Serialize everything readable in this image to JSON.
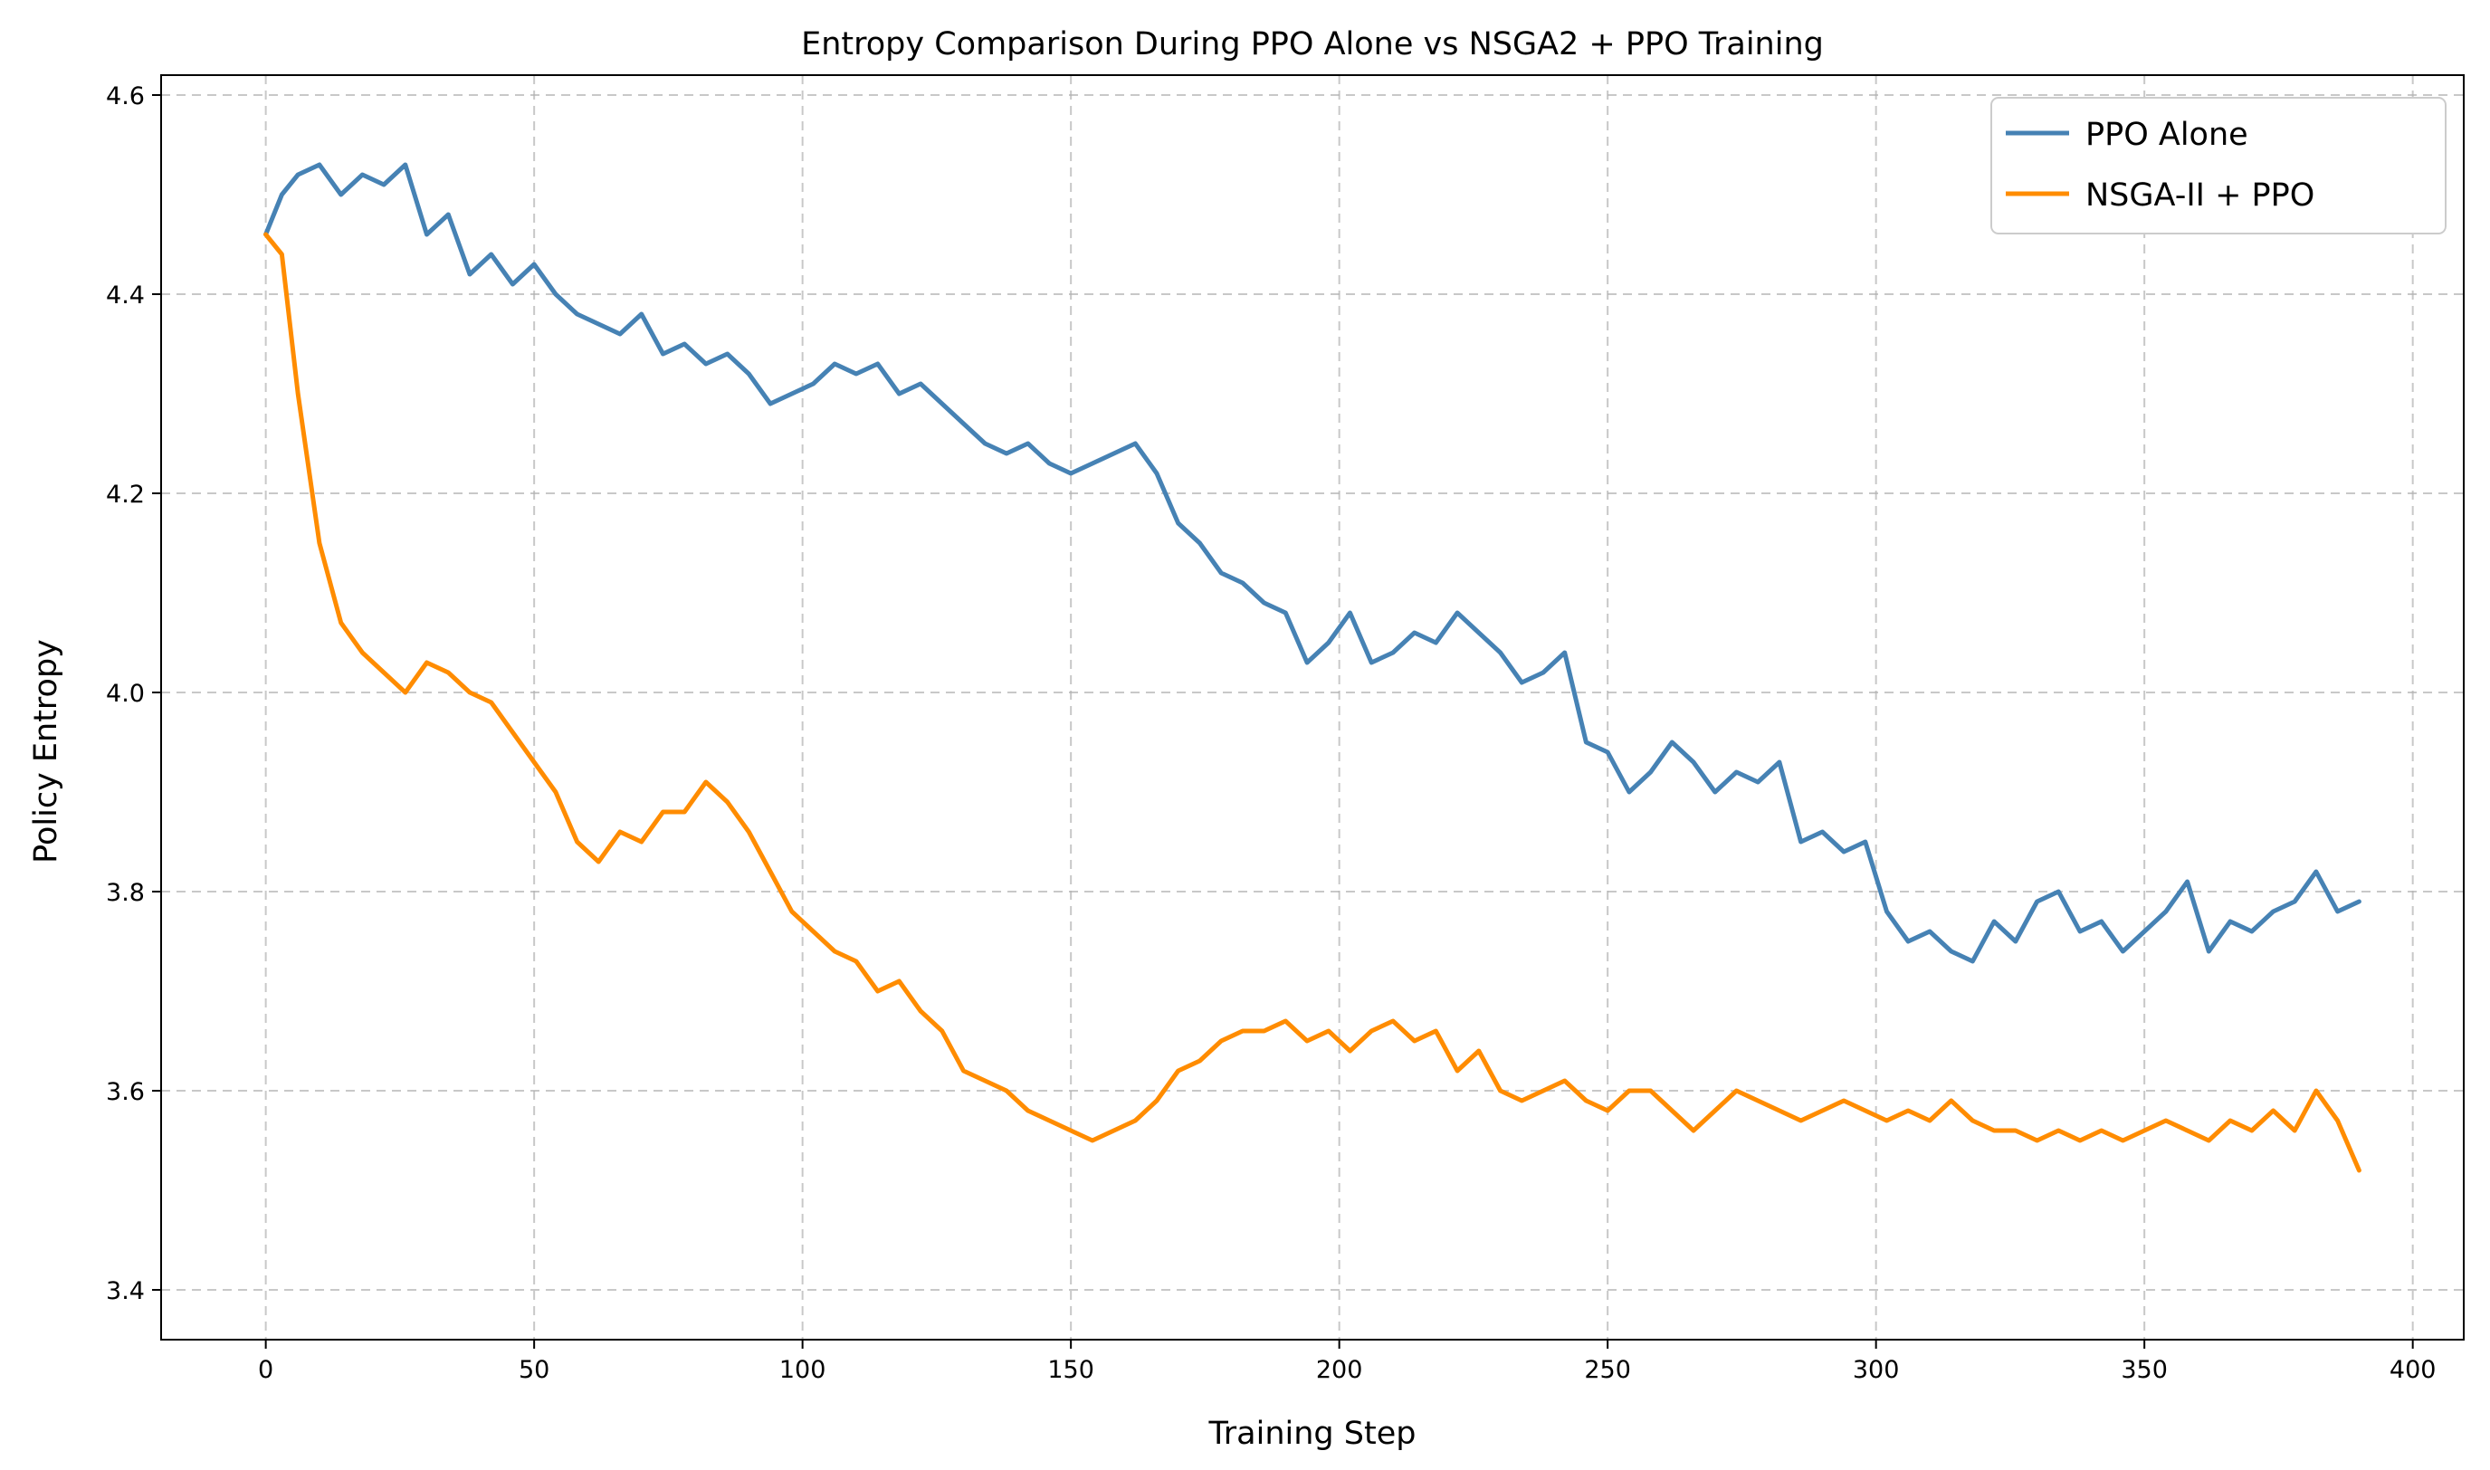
{
  "chart_data": {
    "type": "line",
    "title": "Entropy Comparison During PPO Alone vs NSGA2 + PPO Training",
    "xlabel": "Training Step",
    "ylabel": "Policy Entropy",
    "xlim": [
      -19.5,
      409.5
    ],
    "ylim": [
      3.35,
      4.62
    ],
    "xticks": [
      0,
      50,
      100,
      150,
      200,
      250,
      300,
      350,
      400
    ],
    "yticks": [
      3.4,
      3.6,
      3.8,
      4.0,
      4.2,
      4.4,
      4.6
    ],
    "xtick_labels": [
      "0",
      "50",
      "100",
      "150",
      "200",
      "250",
      "300",
      "350",
      "400"
    ],
    "ytick_labels": [
      "3.4",
      "3.6",
      "3.8",
      "4.0",
      "4.2",
      "4.4",
      "4.6"
    ],
    "grid": true,
    "legend_position": "upper right",
    "x": [
      0,
      3,
      6,
      10,
      14,
      18,
      22,
      26,
      30,
      34,
      38,
      42,
      46,
      50,
      54,
      58,
      62,
      66,
      70,
      74,
      78,
      82,
      86,
      90,
      94,
      98,
      102,
      106,
      110,
      114,
      118,
      122,
      126,
      130,
      134,
      138,
      142,
      146,
      150,
      154,
      158,
      162,
      166,
      170,
      174,
      178,
      182,
      186,
      190,
      194,
      198,
      202,
      206,
      210,
      214,
      218,
      222,
      226,
      230,
      234,
      238,
      242,
      246,
      250,
      254,
      258,
      262,
      266,
      270,
      274,
      278,
      282,
      286,
      290,
      294,
      298,
      302,
      306,
      310,
      314,
      318,
      322,
      326,
      330,
      334,
      338,
      342,
      346,
      350,
      354,
      358,
      362,
      366,
      370,
      374,
      378,
      382,
      386,
      390
    ],
    "series": [
      {
        "name": "PPO Alone",
        "color": "#4682b4",
        "values": [
          4.46,
          4.5,
          4.52,
          4.53,
          4.5,
          4.52,
          4.51,
          4.53,
          4.46,
          4.48,
          4.42,
          4.44,
          4.41,
          4.43,
          4.4,
          4.38,
          4.37,
          4.36,
          4.38,
          4.34,
          4.35,
          4.33,
          4.34,
          4.32,
          4.29,
          4.3,
          4.31,
          4.33,
          4.32,
          4.33,
          4.3,
          4.31,
          4.29,
          4.27,
          4.25,
          4.24,
          4.25,
          4.23,
          4.22,
          4.23,
          4.24,
          4.25,
          4.22,
          4.17,
          4.15,
          4.12,
          4.11,
          4.09,
          4.08,
          4.03,
          4.05,
          4.08,
          4.03,
          4.04,
          4.06,
          4.05,
          4.08,
          4.06,
          4.04,
          4.01,
          4.02,
          4.04,
          3.95,
          3.94,
          3.9,
          3.92,
          3.95,
          3.93,
          3.9,
          3.92,
          3.91,
          3.93,
          3.85,
          3.86,
          3.84,
          3.85,
          3.78,
          3.75,
          3.76,
          3.74,
          3.73,
          3.77,
          3.75,
          3.79,
          3.8,
          3.76,
          3.77,
          3.74,
          3.76,
          3.78,
          3.81,
          3.74,
          3.77,
          3.76,
          3.78,
          3.79,
          3.82,
          3.78,
          3.79
        ]
      },
      {
        "name": "NSGA-II + PPO",
        "color": "#ff8c00",
        "values": [
          4.46,
          4.44,
          4.3,
          4.15,
          4.07,
          4.04,
          4.02,
          4.0,
          4.03,
          4.02,
          4.0,
          3.99,
          3.96,
          3.93,
          3.9,
          3.85,
          3.83,
          3.86,
          3.85,
          3.88,
          3.88,
          3.91,
          3.89,
          3.86,
          3.82,
          3.78,
          3.76,
          3.74,
          3.73,
          3.7,
          3.71,
          3.68,
          3.66,
          3.62,
          3.61,
          3.6,
          3.58,
          3.57,
          3.56,
          3.55,
          3.56,
          3.57,
          3.59,
          3.62,
          3.63,
          3.65,
          3.66,
          3.66,
          3.67,
          3.65,
          3.66,
          3.64,
          3.66,
          3.67,
          3.65,
          3.66,
          3.62,
          3.64,
          3.6,
          3.59,
          3.6,
          3.61,
          3.59,
          3.58,
          3.6,
          3.6,
          3.58,
          3.56,
          3.58,
          3.6,
          3.59,
          3.58,
          3.57,
          3.58,
          3.59,
          3.58,
          3.57,
          3.58,
          3.57,
          3.59,
          3.57,
          3.56,
          3.56,
          3.55,
          3.56,
          3.55,
          3.56,
          3.55,
          3.56,
          3.57,
          3.56,
          3.55,
          3.57,
          3.56,
          3.58,
          3.56,
          3.6,
          3.57,
          3.52
        ]
      }
    ]
  }
}
